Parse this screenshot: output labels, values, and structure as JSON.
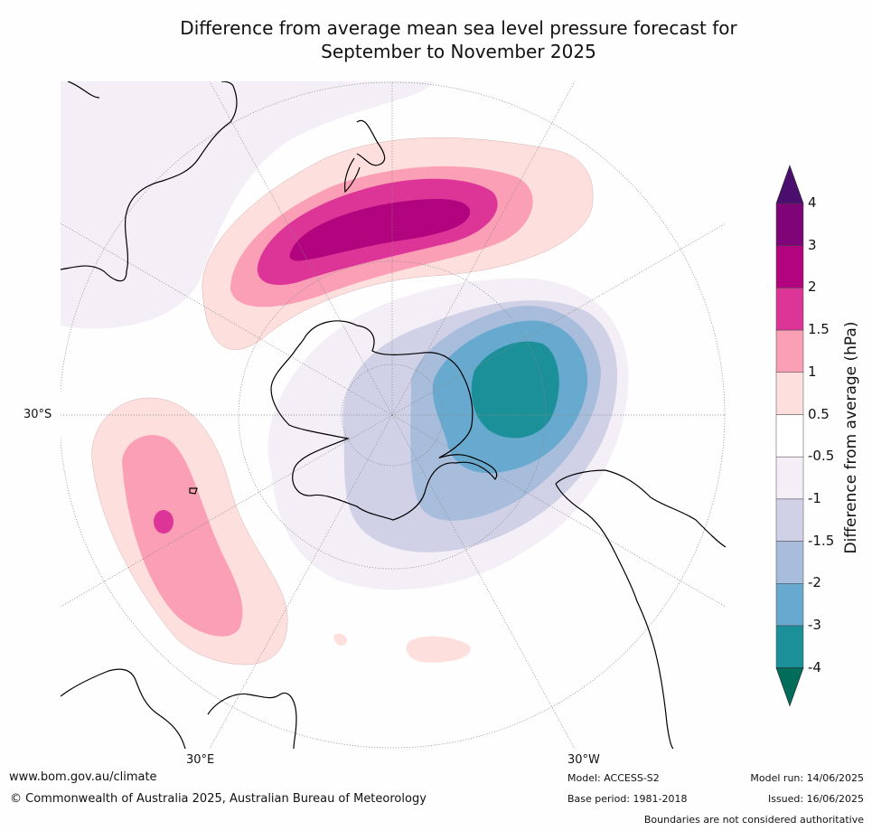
{
  "title": {
    "line1": "Difference from average mean sea level pressure forecast for",
    "line2": "September to November 2025"
  },
  "map": {
    "projection": "south-polar stereographic",
    "labels": {
      "lat_30s": "30°S",
      "lon_30e": "30°E",
      "lon_30w": "30°W"
    },
    "land_color": "#ffffff",
    "coast_color": "#000000"
  },
  "legend": {
    "title": "Difference from average (hPa)",
    "bins": [
      {
        "from": 3,
        "to": 4,
        "color": "#7e0478"
      },
      {
        "from": 2,
        "to": 3,
        "color": "#b1047e"
      },
      {
        "from": 1.5,
        "to": 2,
        "color": "#dd3597"
      },
      {
        "from": 1,
        "to": 1.5,
        "color": "#fa9fb5"
      },
      {
        "from": 0.5,
        "to": 1,
        "color": "#fde0dd"
      },
      {
        "from": -0.5,
        "to": 0.5,
        "color": "#ffffff"
      },
      {
        "from": -1,
        "to": -0.5,
        "color": "#f4eef6"
      },
      {
        "from": -1.5,
        "to": -1,
        "color": "#d0d1e6"
      },
      {
        "from": -2,
        "to": -1.5,
        "color": "#a7bddb"
      },
      {
        "from": -3,
        "to": -2,
        "color": "#67a9cf"
      },
      {
        "from": -4,
        "to": -3,
        "color": "#1c9099"
      }
    ],
    "over_color": "#4a0e6e",
    "under_color": "#016c59",
    "tick_labels": [
      "4",
      "3",
      "2",
      "1.5",
      "1",
      "0.5",
      "-0.5",
      "-1",
      "-1.5",
      "-2",
      "-3",
      "-4"
    ]
  },
  "footer": {
    "website": "www.bom.gov.au/climate",
    "copyright": "© Commonwealth of Australia 2025, Australian Bureau of Meteorology",
    "model": "Model: ACCESS-S2",
    "base_period": "Base period: 1981-2018",
    "model_run": "Model run: 14/06/2025",
    "issued": "Issued: 16/06/2025",
    "disclaimer": "Boundaries are not considered authoritative"
  }
}
